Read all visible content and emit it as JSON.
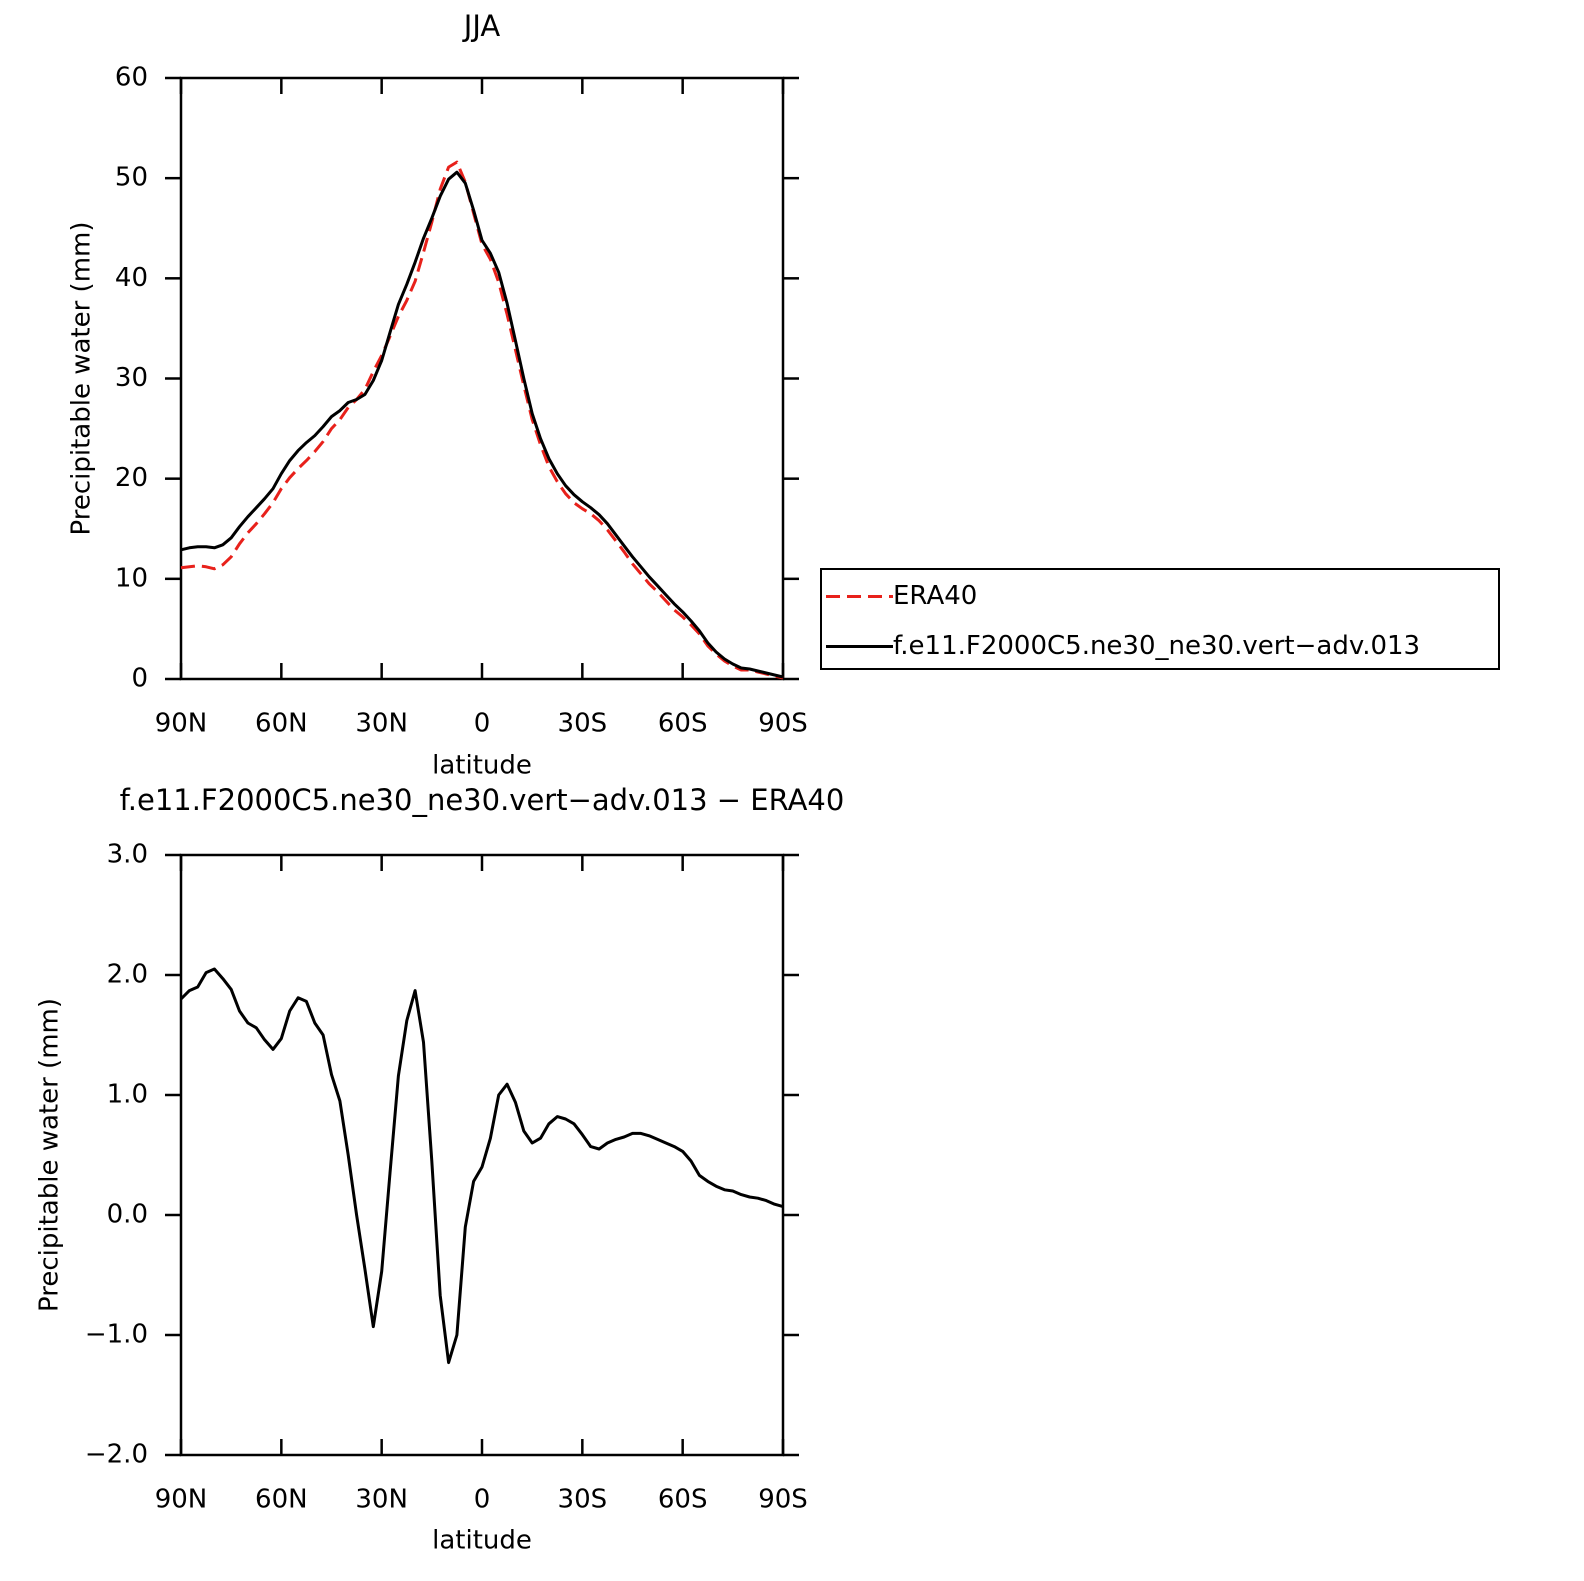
{
  "chart_data": [
    {
      "type": "line",
      "title": "JJA",
      "x_label": "latitude",
      "y_label": "Precipitable water (mm)",
      "x": [
        90,
        87.5,
        85,
        82.5,
        80,
        77.5,
        75,
        72.5,
        70,
        67.5,
        65,
        62.5,
        60,
        57.5,
        55,
        52.5,
        50,
        47.5,
        45,
        42.5,
        40,
        37.5,
        35,
        32.5,
        30,
        27.5,
        25,
        22.5,
        20,
        17.5,
        15,
        12.5,
        10,
        7.5,
        5,
        2.5,
        0,
        -2.5,
        -5,
        -7.5,
        -10,
        -12.5,
        -15,
        -17.5,
        -20,
        -22.5,
        -25,
        -27.5,
        -30,
        -32.5,
        -35,
        -37.5,
        -40,
        -42.5,
        -45,
        -47.5,
        -50,
        -52.5,
        -55,
        -57.5,
        -60,
        -62.5,
        -65,
        -67.5,
        -70,
        -72.5,
        -75,
        -77.5,
        -80,
        -82.5,
        -85,
        -87.5,
        -90
      ],
      "series": [
        {
          "name": "ERA40",
          "color": "#e8211b",
          "dash": true,
          "values": [
            11.1,
            11.2,
            11.3,
            11.2,
            11.0,
            11.4,
            12.2,
            13.5,
            14.6,
            15.5,
            16.5,
            17.6,
            19.0,
            20.1,
            21.0,
            21.8,
            22.7,
            23.7,
            25.0,
            25.9,
            27.1,
            27.9,
            28.9,
            30.7,
            32.3,
            34.2,
            36.2,
            37.8,
            39.7,
            42.6,
            45.6,
            48.9,
            51.1,
            51.6,
            49.6,
            46.5,
            43.4,
            41.9,
            39.6,
            36.4,
            32.9,
            29.3,
            25.9,
            23.4,
            21.2,
            19.7,
            18.5,
            17.6,
            17.0,
            16.5,
            15.8,
            14.9,
            13.8,
            12.7,
            11.5,
            10.5,
            9.5,
            8.7,
            7.8,
            6.9,
            6.2,
            5.4,
            4.5,
            3.3,
            2.5,
            1.8,
            1.3,
            0.9,
            0.9,
            0.7,
            0.5,
            0.3,
            0.1
          ]
        },
        {
          "name": "f.e11.F2000C5.ne30_ne30.vert−adv.013",
          "color": "#000000",
          "dash": false,
          "values": [
            12.9,
            13.1,
            13.2,
            13.2,
            13.1,
            13.4,
            14.1,
            15.2,
            16.2,
            17.1,
            18.0,
            19.0,
            20.5,
            21.8,
            22.8,
            23.6,
            24.3,
            25.2,
            26.2,
            26.8,
            27.6,
            27.9,
            28.4,
            29.8,
            31.8,
            34.6,
            37.4,
            39.4,
            41.6,
            44.0,
            46.0,
            48.2,
            49.9,
            50.6,
            49.5,
            46.8,
            43.8,
            42.5,
            40.6,
            37.5,
            33.8,
            30.0,
            26.5,
            24.0,
            22.0,
            20.5,
            19.3,
            18.4,
            17.7,
            17.1,
            16.4,
            15.5,
            14.4,
            13.3,
            12.2,
            11.2,
            10.2,
            9.3,
            8.4,
            7.5,
            6.7,
            5.8,
            4.8,
            3.6,
            2.7,
            2.0,
            1.5,
            1.1,
            1.0,
            0.8,
            0.6,
            0.4,
            0.2
          ]
        }
      ],
      "xlim": [
        90,
        -90
      ],
      "xticks": [
        {
          "value": 90,
          "label": "90N"
        },
        {
          "value": 60,
          "label": "60N"
        },
        {
          "value": 30,
          "label": "30N"
        },
        0,
        {
          "value": -30,
          "label": "30S"
        },
        {
          "value": -60,
          "label": "60S"
        },
        {
          "value": -90,
          "label": "90S"
        }
      ],
      "ylim": [
        0,
        60
      ],
      "yticks": [
        0,
        10,
        20,
        30,
        40,
        50,
        60
      ],
      "legend": "right"
    },
    {
      "type": "line",
      "title": "f.e11.F2000C5.ne30_ne30.vert−adv.013 − ERA40",
      "x_label": "latitude",
      "y_label": "Precipitable water (mm)",
      "x": [
        90,
        87.5,
        85,
        82.5,
        80,
        77.5,
        75,
        72.5,
        70,
        67.5,
        65,
        62.5,
        60,
        57.5,
        55,
        52.5,
        50,
        47.5,
        45,
        42.5,
        40,
        37.5,
        35,
        32.5,
        30,
        27.5,
        25,
        22.5,
        20,
        17.5,
        15,
        12.5,
        10,
        7.5,
        5,
        2.5,
        0,
        -2.5,
        -5,
        -7.5,
        -10,
        -12.5,
        -15,
        -17.5,
        -20,
        -22.5,
        -25,
        -27.5,
        -30,
        -32.5,
        -35,
        -37.5,
        -40,
        -42.5,
        -45,
        -47.5,
        -50,
        -52.5,
        -55,
        -57.5,
        -60,
        -62.5,
        -65,
        -67.5,
        -70,
        -72.5,
        -75,
        -77.5,
        -80,
        -82.5,
        -85,
        -87.5,
        -90
      ],
      "color": "#000000",
      "values": [
        1.8,
        1.87,
        1.9,
        2.02,
        2.05,
        1.97,
        1.88,
        1.7,
        1.6,
        1.56,
        1.46,
        1.38,
        1.47,
        1.7,
        1.81,
        1.78,
        1.6,
        1.5,
        1.17,
        0.95,
        0.5,
        0.0,
        -0.45,
        -0.93,
        -0.47,
        0.35,
        1.16,
        1.62,
        1.87,
        1.44,
        0.45,
        -0.67,
        -1.23,
        -1.0,
        -0.1,
        0.28,
        0.4,
        0.64,
        1.0,
        1.09,
        0.94,
        0.7,
        0.6,
        0.64,
        0.76,
        0.82,
        0.8,
        0.76,
        0.67,
        0.57,
        0.55,
        0.6,
        0.63,
        0.65,
        0.68,
        0.68,
        0.66,
        0.63,
        0.6,
        0.57,
        0.53,
        0.45,
        0.33,
        0.28,
        0.24,
        0.21,
        0.2,
        0.17,
        0.15,
        0.14,
        0.12,
        0.09,
        0.07
      ],
      "xlim": [
        90,
        -90
      ],
      "xticks": [
        {
          "value": 90,
          "label": "90N"
        },
        {
          "value": 60,
          "label": "60N"
        },
        {
          "value": 30,
          "label": "30N"
        },
        0,
        {
          "value": -30,
          "label": "30S"
        },
        {
          "value": -60,
          "label": "60S"
        },
        {
          "value": -90,
          "label": "90S"
        }
      ],
      "ylim": [
        -2,
        3
      ],
      "yticks": [
        {
          "value": -2,
          "label": "−2.0"
        },
        {
          "value": -1,
          "label": "−1.0"
        },
        {
          "value": 0,
          "label": "0.0"
        },
        {
          "value": 1,
          "label": "1.0"
        },
        {
          "value": 2,
          "label": "2.0"
        },
        {
          "value": 3,
          "label": "3.0"
        }
      ]
    }
  ]
}
